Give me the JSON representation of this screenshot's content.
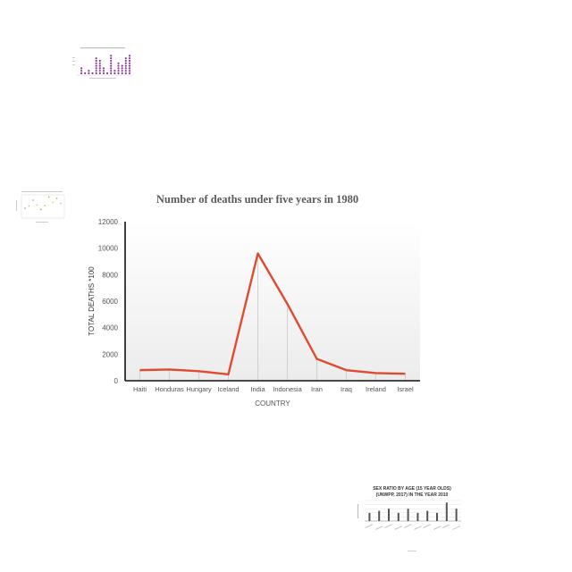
{
  "colors": {
    "line": "#e04a2f",
    "axis": "#111111",
    "gridline": "#c8c8c8",
    "text": "#555555",
    "purple": "#8e3a9c",
    "thumb_bar": "#555555"
  },
  "chart_data": [
    {
      "type": "line",
      "title": "Number of deaths under five years in 1980",
      "xlabel": "COUNTRY",
      "ylabel": "TOTAL DEATHS *100",
      "categories": [
        "Haiti",
        "Honduras",
        "Hungary",
        "Iceland",
        "India",
        "Indonesia",
        "Iran",
        "Iraq",
        "Ireland",
        "Israel"
      ],
      "values": [
        800,
        850,
        720,
        480,
        9600,
        5800,
        1650,
        800,
        580,
        530
      ],
      "yticks": [
        0,
        2000,
        4000,
        6000,
        8000,
        10000,
        12000
      ],
      "ylim": [
        0,
        12000
      ],
      "grid": "vertical drop lines at each point"
    },
    {
      "type": "scatter",
      "title": "",
      "values": [
        2,
        0,
        1,
        0,
        6,
        5,
        2,
        0,
        7,
        1,
        4,
        3,
        6,
        7
      ]
    },
    {
      "type": "scatter",
      "title": "",
      "values": [
        2.5,
        3.2,
        5,
        3.5,
        2.1,
        3.3,
        6,
        4.3,
        5.6,
        4
      ]
    },
    {
      "type": "bar",
      "title": "SEX RATIO BY AGE (15 YEAR OLDS)\n(UNWPP, 2017) IN THE YEAR 2010",
      "values": [
        4,
        5,
        6,
        4,
        6,
        4,
        5,
        4,
        9,
        6
      ]
    }
  ]
}
